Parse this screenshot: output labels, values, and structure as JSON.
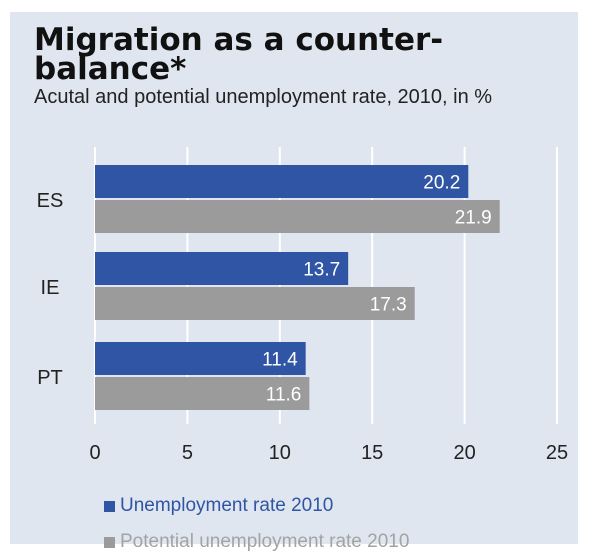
{
  "chart_data": {
    "type": "bar",
    "orientation": "horizontal",
    "title": "Migration as a counter-balance*",
    "subtitle": "Acutal and potential unemployment rate, 2010, in %",
    "categories": [
      "ES",
      "IE",
      "PT"
    ],
    "series": [
      {
        "name": "Unemployment rate 2010",
        "color": "#2f55a4",
        "values": [
          20.2,
          13.7,
          11.4
        ]
      },
      {
        "name": "Potential unemployment rate 2010",
        "color": "#9b9b9b",
        "values": [
          21.9,
          17.3,
          11.6
        ]
      }
    ],
    "xlim": [
      0,
      25
    ],
    "xticks": [
      0,
      5,
      10,
      15,
      20,
      25
    ],
    "grid": "vertical",
    "legend_position": "bottom",
    "data_labels": true,
    "background": "#dfe6ef",
    "label_color": "#ffffff"
  }
}
